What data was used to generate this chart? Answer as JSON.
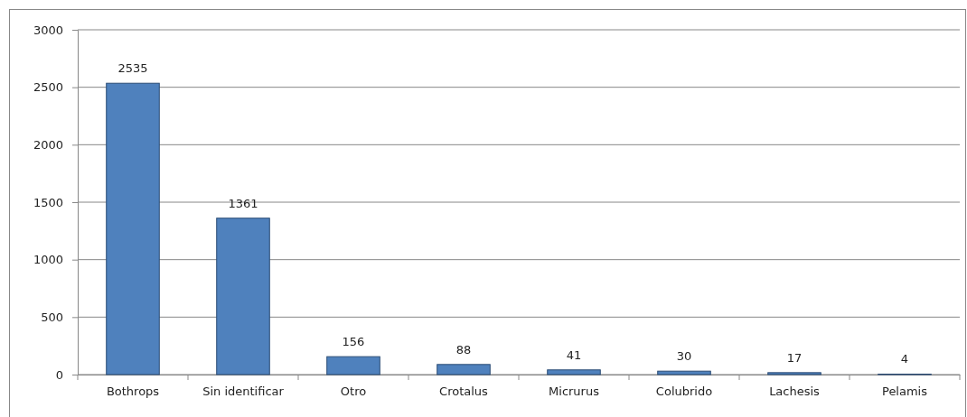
{
  "chart_data": {
    "type": "bar",
    "categories": [
      "Bothrops",
      "Sin identificar",
      "Otro",
      "Crotalus",
      "Micrurus",
      "Colubrido",
      "Lachesis",
      "Pelamis"
    ],
    "values": [
      2535,
      1361,
      156,
      88,
      41,
      30,
      17,
      4
    ],
    "color": "#4f81bd",
    "ylim": [
      0,
      3000
    ],
    "yticks": [
      0,
      500,
      1000,
      1500,
      2000,
      2500,
      3000
    ],
    "grid": "y",
    "data_labels": true
  }
}
